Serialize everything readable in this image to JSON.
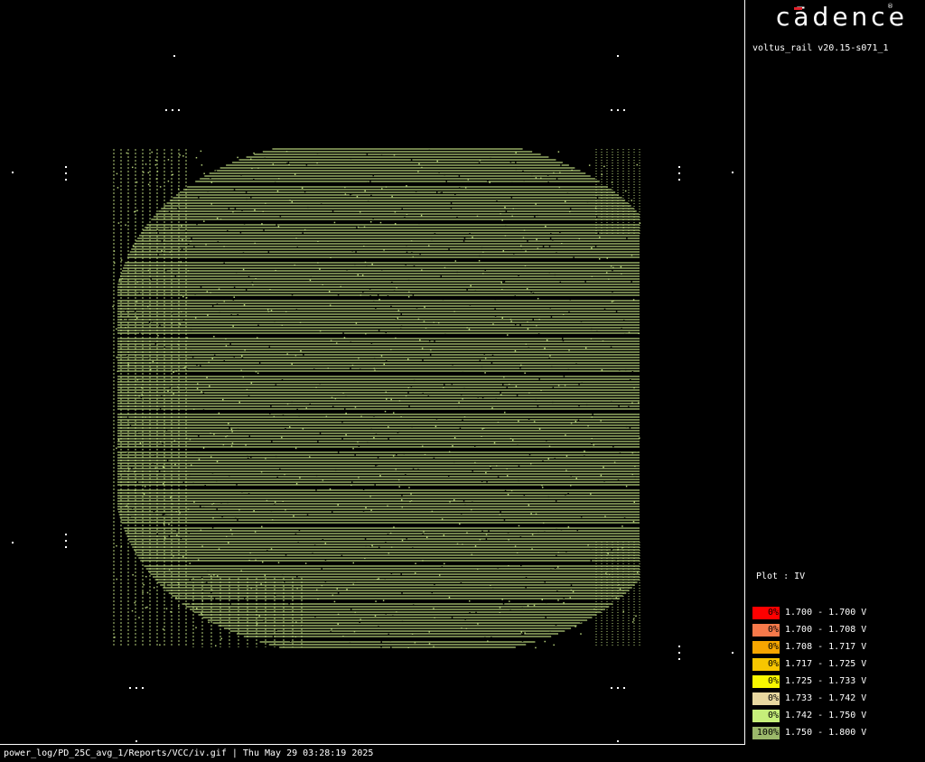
{
  "header": {
    "logo_text": "cādence",
    "logo_reg": "®",
    "version": "voltus_rail v20.15-s071_1"
  },
  "legend": {
    "title": "Plot : IV",
    "items": [
      {
        "percent": "0%",
        "range": "1.700 - 1.700 V",
        "color": "#ff0000"
      },
      {
        "percent": "0%",
        "range": "1.700 - 1.708 V",
        "color": "#f7794a"
      },
      {
        "percent": "0%",
        "range": "1.708 - 1.717 V",
        "color": "#f7a600"
      },
      {
        "percent": "0%",
        "range": "1.717 - 1.725 V",
        "color": "#f7c600"
      },
      {
        "percent": "0%",
        "range": "1.725 - 1.733 V",
        "color": "#f7f700"
      },
      {
        "percent": "0%",
        "range": "1.733 - 1.742 V",
        "color": "#e8d8a0"
      },
      {
        "percent": "0%",
        "range": "1.742 - 1.750 V",
        "color": "#c6ef7a"
      },
      {
        "percent": "100%",
        "range": "1.750 - 1.800 V",
        "color": "#9bb86a"
      }
    ]
  },
  "plot": {
    "stripe_color": "#b5d07a",
    "dot_color": "#ffffff"
  },
  "footer": {
    "path": "power_log/PD_25C_avg_1/Reports/VCC/iv.gif | Thu May 29 03:28:19 2025"
  }
}
